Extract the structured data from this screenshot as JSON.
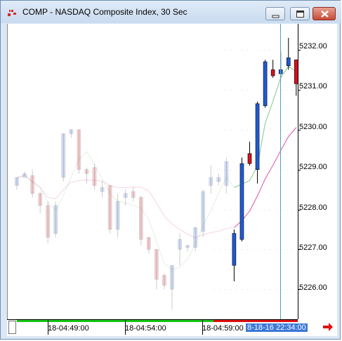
{
  "window": {
    "title": "COMP - NASDAQ Composite Index, 30 Sec",
    "controls": {
      "minimize": "minimize-icon",
      "maximize": "maximize-icon",
      "close": "close-icon"
    }
  },
  "colors": {
    "up": "#1f5bd6",
    "down": "#d3121c",
    "ma_fast": "#9bd09b",
    "ma_slow": "#e26bb9",
    "cursor": "#4aa3c8",
    "session": "#19c619",
    "session_late": "#e01010"
  },
  "chart_data": {
    "type": "candlestick",
    "y_ticks": [
      "5232.00",
      "5231.00",
      "5230.00",
      "5229.00",
      "5228.00",
      "5227.00",
      "5226.00"
    ],
    "ylim": [
      5225.25,
      5232.65
    ],
    "x_ticks": [
      "18-04:49:00",
      "18-04:54:00",
      "18-04:59:00"
    ],
    "cursor_label": "8-18-16 22:34:00",
    "faded_candles": 28,
    "candles": [
      {
        "o": 5228.6,
        "h": 5228.8,
        "l": 5228.5,
        "c": 5228.8
      },
      {
        "o": 5228.8,
        "h": 5228.95,
        "l": 5228.85,
        "c": 5228.9
      },
      {
        "o": 5228.85,
        "h": 5229.0,
        "l": 5228.3,
        "c": 5228.4
      },
      {
        "o": 5228.4,
        "h": 5228.45,
        "l": 5227.9,
        "c": 5228.1
      },
      {
        "o": 5228.1,
        "h": 5228.2,
        "l": 5227.15,
        "c": 5227.3
      },
      {
        "o": 5227.4,
        "h": 5228.2,
        "l": 5227.3,
        "c": 5228.1
      },
      {
        "o": 5228.8,
        "h": 5229.9,
        "l": 5228.7,
        "c": 5229.9
      },
      {
        "o": 5229.9,
        "h": 5230.0,
        "l": 5229.8,
        "c": 5230.0
      },
      {
        "o": 5230.0,
        "h": 5230.0,
        "l": 5228.9,
        "c": 5229.0
      },
      {
        "o": 5229.0,
        "h": 5229.05,
        "l": 5228.65,
        "c": 5228.9
      },
      {
        "o": 5229.05,
        "h": 5229.15,
        "l": 5228.5,
        "c": 5228.6
      },
      {
        "o": 5228.45,
        "h": 5228.7,
        "l": 5228.3,
        "c": 5228.55
      },
      {
        "o": 5228.6,
        "h": 5228.6,
        "l": 5227.4,
        "c": 5227.5
      },
      {
        "o": 5227.5,
        "h": 5228.4,
        "l": 5227.3,
        "c": 5228.2
      },
      {
        "o": 5228.3,
        "h": 5228.5,
        "l": 5228.1,
        "c": 5228.4
      },
      {
        "o": 5228.45,
        "h": 5228.55,
        "l": 5228.2,
        "c": 5228.3
      },
      {
        "o": 5228.3,
        "h": 5228.35,
        "l": 5227.1,
        "c": 5227.25
      },
      {
        "o": 5227.3,
        "h": 5227.3,
        "l": 5226.9,
        "c": 5227.0
      },
      {
        "o": 5227.0,
        "h": 5227.0,
        "l": 5226.0,
        "c": 5226.25
      },
      {
        "o": 5226.35,
        "h": 5226.4,
        "l": 5226.0,
        "c": 5226.1
      },
      {
        "o": 5226.0,
        "h": 5226.6,
        "l": 5225.5,
        "c": 5226.6
      },
      {
        "o": 5227.0,
        "h": 5227.4,
        "l": 5226.6,
        "c": 5227.25
      },
      {
        "o": 5227.05,
        "h": 5227.1,
        "l": 5226.95,
        "c": 5227.1
      },
      {
        "o": 5227.05,
        "h": 5227.55,
        "l": 5226.95,
        "c": 5227.55
      },
      {
        "o": 5227.45,
        "h": 5228.5,
        "l": 5227.3,
        "c": 5228.45
      },
      {
        "o": 5228.6,
        "h": 5229.1,
        "l": 5228.4,
        "c": 5228.8
      },
      {
        "o": 5228.7,
        "h": 5228.9,
        "l": 5228.6,
        "c": 5228.8
      },
      {
        "o": 5228.6,
        "h": 5229.3,
        "l": 5228.4,
        "c": 5229.2
      },
      {
        "o": 5226.6,
        "h": 5227.5,
        "l": 5226.2,
        "c": 5227.4
      },
      {
        "o": 5227.25,
        "h": 5229.3,
        "l": 5227.2,
        "c": 5229.15
      },
      {
        "o": 5229.4,
        "h": 5229.7,
        "l": 5229.1,
        "c": 5229.15
      },
      {
        "o": 5229.0,
        "h": 5230.7,
        "l": 5228.65,
        "c": 5230.65
      },
      {
        "o": 5230.6,
        "h": 5231.75,
        "l": 5230.55,
        "c": 5231.7
      },
      {
        "o": 5231.5,
        "h": 5231.75,
        "l": 5231.3,
        "c": 5231.35
      },
      {
        "o": 5231.4,
        "h": 5231.95,
        "l": 5231.3,
        "c": 5231.5
      },
      {
        "o": 5231.6,
        "h": 5232.3,
        "l": 5231.5,
        "c": 5231.8
      },
      {
        "o": 5231.75,
        "h": 5231.75,
        "l": 5230.85,
        "c": 5231.15
      }
    ]
  }
}
